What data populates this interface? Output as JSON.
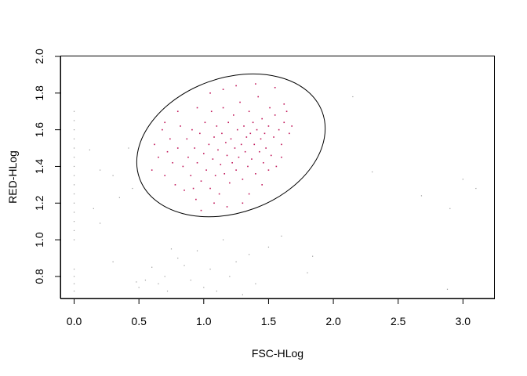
{
  "chart_data": {
    "type": "scatter",
    "title": "",
    "xlabel": "FSC-HLog",
    "ylabel": "RED-HLog",
    "xlim": [
      -0.1,
      3.24
    ],
    "ylim": [
      0.68,
      2.0
    ],
    "xticks": [
      0.0,
      0.5,
      1.0,
      1.5,
      2.0,
      2.5,
      3.0
    ],
    "xtick_labels": [
      "0.0",
      "0.5",
      "1.0",
      "1.5",
      "2.0",
      "2.5",
      "3.0"
    ],
    "yticks": [
      0.8,
      1.0,
      1.2,
      1.4,
      1.6,
      1.8,
      2.0
    ],
    "ytick_labels": [
      "0.8",
      "1.0",
      "1.2",
      "1.4",
      "1.6",
      "1.8",
      "2.0"
    ],
    "grid": false,
    "legend": "none",
    "gate": {
      "shape": "ellipse",
      "center": [
        1.21,
        1.515
      ],
      "semi_axes": [
        0.75,
        0.367
      ],
      "rotation_deg": -20,
      "stroke": "#000000"
    },
    "series": [
      {
        "role": "inside-gate",
        "color": "#c2185b",
        "points": [
          [
            0.6,
            1.38
          ],
          [
            0.62,
            1.52
          ],
          [
            0.65,
            1.45
          ],
          [
            0.68,
            1.6
          ],
          [
            0.7,
            1.35
          ],
          [
            0.72,
            1.48
          ],
          [
            0.74,
            1.55
          ],
          [
            0.76,
            1.42
          ],
          [
            0.78,
            1.3
          ],
          [
            0.8,
            1.5
          ],
          [
            0.82,
            1.62
          ],
          [
            0.84,
            1.4
          ],
          [
            0.85,
            1.27
          ],
          [
            0.87,
            1.55
          ],
          [
            0.88,
            1.45
          ],
          [
            0.9,
            1.35
          ],
          [
            0.91,
            1.6
          ],
          [
            0.93,
            1.5
          ],
          [
            0.94,
            1.22
          ],
          [
            0.95,
            1.42
          ],
          [
            0.97,
            1.58
          ],
          [
            0.98,
            1.32
          ],
          [
            1.0,
            1.47
          ],
          [
            1.01,
            1.64
          ],
          [
            1.02,
            1.38
          ],
          [
            1.04,
            1.52
          ],
          [
            1.05,
            1.28
          ],
          [
            1.06,
            1.7
          ],
          [
            1.07,
            1.44
          ],
          [
            1.08,
            1.56
          ],
          [
            1.09,
            1.35
          ],
          [
            1.1,
            1.62
          ],
          [
            1.11,
            1.49
          ],
          [
            1.12,
            1.25
          ],
          [
            1.13,
            1.41
          ],
          [
            1.14,
            1.58
          ],
          [
            1.15,
            1.72
          ],
          [
            1.16,
            1.36
          ],
          [
            1.17,
            1.53
          ],
          [
            1.18,
            1.46
          ],
          [
            1.19,
            1.64
          ],
          [
            1.2,
            1.31
          ],
          [
            1.21,
            1.55
          ],
          [
            1.22,
            1.42
          ],
          [
            1.23,
            1.68
          ],
          [
            1.24,
            1.5
          ],
          [
            1.25,
            1.38
          ],
          [
            1.26,
            1.6
          ],
          [
            1.27,
            1.45
          ],
          [
            1.28,
            1.75
          ],
          [
            1.29,
            1.52
          ],
          [
            1.3,
            1.33
          ],
          [
            1.31,
            1.62
          ],
          [
            1.32,
            1.48
          ],
          [
            1.33,
            1.56
          ],
          [
            1.34,
            1.4
          ],
          [
            1.35,
            1.7
          ],
          [
            1.36,
            1.58
          ],
          [
            1.37,
            1.44
          ],
          [
            1.38,
            1.64
          ],
          [
            1.39,
            1.52
          ],
          [
            1.4,
            1.36
          ],
          [
            1.41,
            1.6
          ],
          [
            1.42,
            1.78
          ],
          [
            1.43,
            1.48
          ],
          [
            1.44,
            1.55
          ],
          [
            1.45,
            1.66
          ],
          [
            1.46,
            1.42
          ],
          [
            1.47,
            1.58
          ],
          [
            1.48,
            1.5
          ],
          [
            1.5,
            1.62
          ],
          [
            1.51,
            1.72
          ],
          [
            1.52,
            1.46
          ],
          [
            1.54,
            1.56
          ],
          [
            1.55,
            1.68
          ],
          [
            1.56,
            1.4
          ],
          [
            1.58,
            1.6
          ],
          [
            1.6,
            1.52
          ],
          [
            1.62,
            1.64
          ],
          [
            1.64,
            1.7
          ],
          [
            1.66,
            1.58
          ],
          [
            1.68,
            1.62
          ],
          [
            1.15,
            1.82
          ],
          [
            1.25,
            1.84
          ],
          [
            1.4,
            1.85
          ],
          [
            1.55,
            1.83
          ],
          [
            1.3,
            1.2
          ],
          [
            1.18,
            1.18
          ],
          [
            1.08,
            1.2
          ],
          [
            0.98,
            1.16
          ],
          [
            0.92,
            1.28
          ],
          [
            1.45,
            1.3
          ],
          [
            1.5,
            1.38
          ],
          [
            1.35,
            1.25
          ],
          [
            1.6,
            1.45
          ],
          [
            0.7,
            1.64
          ],
          [
            0.8,
            1.7
          ],
          [
            0.95,
            1.72
          ],
          [
            1.05,
            1.8
          ],
          [
            1.62,
            1.74
          ]
        ]
      },
      {
        "role": "outside-gate",
        "color": "#9a9a9a",
        "points": [
          [
            0.0,
            0.72
          ],
          [
            0.0,
            0.76
          ],
          [
            0.0,
            0.8
          ],
          [
            0.0,
            0.84
          ],
          [
            0.0,
            1.0
          ],
          [
            0.0,
            1.05
          ],
          [
            0.0,
            1.1
          ],
          [
            0.0,
            1.15
          ],
          [
            0.0,
            1.2
          ],
          [
            0.0,
            1.25
          ],
          [
            0.0,
            1.3
          ],
          [
            0.0,
            1.35
          ],
          [
            0.0,
            1.4
          ],
          [
            0.0,
            1.45
          ],
          [
            0.0,
            1.5
          ],
          [
            0.0,
            1.55
          ],
          [
            0.0,
            1.6
          ],
          [
            0.0,
            1.65
          ],
          [
            0.0,
            1.7
          ],
          [
            0.12,
            1.49
          ],
          [
            0.2,
            1.38
          ],
          [
            0.3,
            1.35
          ],
          [
            0.35,
            1.23
          ],
          [
            0.42,
            1.5
          ],
          [
            0.45,
            1.28
          ],
          [
            0.2,
            1.09
          ],
          [
            0.15,
            1.17
          ],
          [
            0.48,
            0.77
          ],
          [
            0.5,
            0.74
          ],
          [
            0.55,
            0.78
          ],
          [
            0.6,
            0.85
          ],
          [
            0.65,
            0.76
          ],
          [
            0.7,
            0.8
          ],
          [
            0.72,
            0.72
          ],
          [
            0.75,
            0.95
          ],
          [
            0.8,
            0.9
          ],
          [
            0.85,
            0.86
          ],
          [
            0.9,
            0.78
          ],
          [
            0.95,
            0.94
          ],
          [
            1.0,
            0.74
          ],
          [
            1.05,
            0.84
          ],
          [
            1.1,
            0.72
          ],
          [
            1.15,
            1.0
          ],
          [
            1.2,
            0.8
          ],
          [
            1.25,
            0.88
          ],
          [
            1.3,
            0.7
          ],
          [
            1.35,
            0.92
          ],
          [
            1.4,
            0.76
          ],
          [
            1.5,
            0.96
          ],
          [
            1.6,
            1.02
          ],
          [
            1.8,
            0.82
          ],
          [
            1.84,
            0.91
          ],
          [
            2.15,
            1.78
          ],
          [
            2.3,
            1.37
          ],
          [
            2.68,
            1.24
          ],
          [
            2.9,
            1.17
          ],
          [
            3.0,
            1.33
          ],
          [
            3.1,
            1.28
          ],
          [
            2.88,
            0.73
          ],
          [
            0.3,
            0.88
          ]
        ]
      }
    ]
  }
}
